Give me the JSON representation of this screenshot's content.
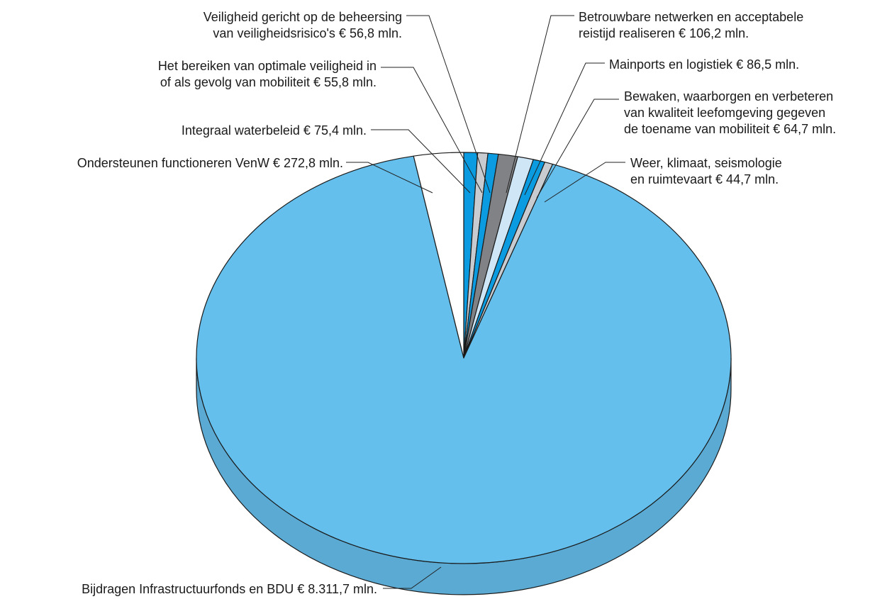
{
  "chart_data": {
    "type": "pie",
    "title": "",
    "unit": "€ mln.",
    "slices": [
      {
        "name": "Integraal waterbeleid",
        "value": 75.4,
        "color": "#0a9be0",
        "label_lines": [
          "Integraal waterbeleid € 75,4 mln."
        ]
      },
      {
        "name": "Het bereiken van optimale veiligheid in of als gevolg van mobiliteit",
        "value": 55.8,
        "color": "#c8ccd0",
        "label_lines": [
          "Het bereiken van optimale veiligheid in",
          "of als gevolg van mobiliteit € 55,8 mln."
        ]
      },
      {
        "name": "Veiligheid gericht op de beheersing van veiligheidsrisico's",
        "value": 56.8,
        "color": "#0a9be0",
        "label_lines": [
          "Veiligheid gericht op de beheersing",
          "van veiligheidsrisico's € 56,8 mln."
        ]
      },
      {
        "name": "Betrouwbare netwerken en acceptabele reistijd realiseren",
        "value": 106.2,
        "color": "#808285",
        "label_lines": [
          "Betrouwbare netwerken en acceptabele",
          "reistijd realiseren € 106,2 mln."
        ]
      },
      {
        "name": "Mainports en logistiek",
        "value": 86.5,
        "color": "#cfe6f7",
        "label_lines": [
          "Mainports en logistiek € 86,5 mln."
        ]
      },
      {
        "name": "Bewaken, waarborgen en verbeteren van kwaliteit leefomgeving gegeven de toename van mobiliteit",
        "value": 64.7,
        "color": "#0a9be0",
        "label_lines": [
          "Bewaken, waarborgen en verbeteren",
          "van kwaliteit leefomgeving gegeven",
          "de toename van mobiliteit € 64,7 mln."
        ]
      },
      {
        "name": "Weer, klimaat, seismologie en ruimtevaart",
        "value": 44.7,
        "color": "#c8ccd0",
        "label_lines": [
          "Weer, klimaat, seismologie",
          "en ruimtevaart € 44,7 mln."
        ]
      },
      {
        "name": "Bijdragen Infrastructuurfonds en BDU",
        "value": 8311.7,
        "color": "#64bfed",
        "label_lines": [
          "Bijdragen Infrastructuurfonds en BDU € 8.311,7 mln."
        ]
      },
      {
        "name": "Ondersteunen functioneren VenW",
        "value": 272.8,
        "color": "#ffffff",
        "label_lines": [
          "Ondersteunen functioneren VenW € 272,8 mln."
        ]
      }
    ]
  },
  "style": {
    "side_color": "#5aaad3",
    "edge_color": "#1a1a1a",
    "leader_color": "#222222"
  }
}
